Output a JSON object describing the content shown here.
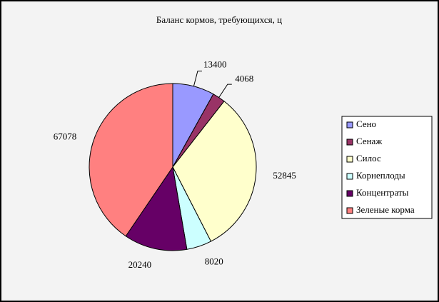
{
  "chart_data": {
    "type": "pie",
    "title": "Баланс кормов, требующихся, ц",
    "categories": [
      "Сено",
      "Сенаж",
      "Силос",
      "Корнеплоды",
      "Концентраты",
      "Зеленые корма"
    ],
    "values": [
      13400,
      4068,
      52845,
      8020,
      20240,
      67078
    ],
    "colors": [
      "#9999ff",
      "#993366",
      "#ffffcc",
      "#ccffff",
      "#660066",
      "#ff8080"
    ],
    "legend": "right"
  }
}
